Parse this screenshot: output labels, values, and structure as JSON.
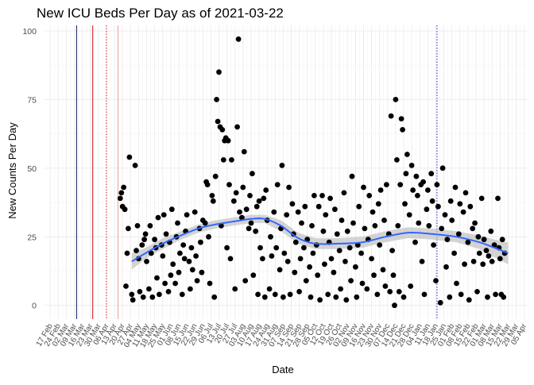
{
  "chart_data": {
    "type": "scatter",
    "title": "New ICU Beds Per Day as of 2021-03-22",
    "xlabel": "Date",
    "ylabel": "New Counts Per Day",
    "xlim": [
      "2020-02-12",
      "2021-04-08"
    ],
    "ylim": [
      -5,
      102
    ],
    "yticks": [
      0,
      25,
      50,
      75,
      100
    ],
    "xticks_start": "2020-02-17",
    "xticks_end": "2021-04-05",
    "xtick_step_days": 7,
    "grid": true,
    "background": "#ffffff",
    "point_color": "#000000",
    "smooth_color": "#3366ff",
    "band_color": "#bdbdbd",
    "reference_lines": [
      {
        "x": "2020-03-11",
        "color": "#1f2f6b",
        "style": "solid"
      },
      {
        "x": "2020-03-25",
        "color": "#d7262b",
        "style": "solid"
      },
      {
        "x": "2020-04-06",
        "color": "#d7262b",
        "style": "dotted"
      },
      {
        "x": "2020-04-16",
        "color": "#f4a5a5",
        "style": "solid"
      },
      {
        "x": "2021-01-19",
        "color": "#3333cc",
        "style": "dotted"
      }
    ],
    "smooth_curve": [
      {
        "x": "2020-04-28",
        "y": 16,
        "lo": 13,
        "hi": 19
      },
      {
        "x": "2020-05-10",
        "y": 19,
        "lo": 17,
        "hi": 21
      },
      {
        "x": "2020-05-25",
        "y": 22.5,
        "lo": 20.5,
        "hi": 24.5
      },
      {
        "x": "2020-06-10",
        "y": 25.5,
        "lo": 24,
        "hi": 27
      },
      {
        "x": "2020-06-25",
        "y": 28,
        "lo": 26.5,
        "hi": 29.5
      },
      {
        "x": "2020-07-10",
        "y": 29.5,
        "lo": 28,
        "hi": 31
      },
      {
        "x": "2020-07-25",
        "y": 30.5,
        "lo": 29,
        "hi": 32
      },
      {
        "x": "2020-08-10",
        "y": 31.5,
        "lo": 30,
        "hi": 33
      },
      {
        "x": "2020-08-22",
        "y": 31.5,
        "lo": 30,
        "hi": 33
      },
      {
        "x": "2020-09-05",
        "y": 29,
        "lo": 27,
        "hi": 31
      },
      {
        "x": "2020-09-20",
        "y": 24.5,
        "lo": 22.5,
        "hi": 26.5
      },
      {
        "x": "2020-10-05",
        "y": 22.5,
        "lo": 20.5,
        "hi": 24.5
      },
      {
        "x": "2020-10-25",
        "y": 22.5,
        "lo": 20.5,
        "hi": 24.5
      },
      {
        "x": "2020-11-15",
        "y": 23,
        "lo": 21,
        "hi": 25
      },
      {
        "x": "2020-12-05",
        "y": 25,
        "lo": 23,
        "hi": 27
      },
      {
        "x": "2020-12-25",
        "y": 26.5,
        "lo": 24.5,
        "hi": 28.5
      },
      {
        "x": "2021-01-15",
        "y": 26,
        "lo": 24,
        "hi": 28
      },
      {
        "x": "2021-02-05",
        "y": 25,
        "lo": 23,
        "hi": 27
      },
      {
        "x": "2021-02-25",
        "y": 23,
        "lo": 20.5,
        "hi": 25.5
      },
      {
        "x": "2021-03-10",
        "y": 21,
        "lo": 17.5,
        "hi": 24
      },
      {
        "x": "2021-03-22",
        "y": 19,
        "lo": 15,
        "hi": 23
      }
    ],
    "points": [
      [
        "2020-04-18",
        39
      ],
      [
        "2020-04-19",
        41
      ],
      [
        "2020-04-20",
        36
      ],
      [
        "2020-04-21",
        43
      ],
      [
        "2020-04-22",
        35
      ],
      [
        "2020-04-23",
        7
      ],
      [
        "2020-04-24",
        19
      ],
      [
        "2020-04-25",
        28
      ],
      [
        "2020-04-26",
        54
      ],
      [
        "2020-04-28",
        4
      ],
      [
        "2020-04-29",
        2
      ],
      [
        "2020-05-01",
        51
      ],
      [
        "2020-05-02",
        20
      ],
      [
        "2020-05-03",
        29
      ],
      [
        "2020-05-04",
        17
      ],
      [
        "2020-05-05",
        5
      ],
      [
        "2020-05-07",
        22
      ],
      [
        "2020-05-08",
        3
      ],
      [
        "2020-05-09",
        24
      ],
      [
        "2020-05-10",
        26
      ],
      [
        "2020-05-11",
        16
      ],
      [
        "2020-05-13",
        6
      ],
      [
        "2020-05-14",
        29
      ],
      [
        "2020-05-15",
        19
      ],
      [
        "2020-05-16",
        3
      ],
      [
        "2020-05-18",
        24
      ],
      [
        "2020-05-19",
        21
      ],
      [
        "2020-05-20",
        10
      ],
      [
        "2020-05-21",
        32
      ],
      [
        "2020-05-22",
        4
      ],
      [
        "2020-05-24",
        22
      ],
      [
        "2020-05-25",
        18
      ],
      [
        "2020-05-26",
        33
      ],
      [
        "2020-05-27",
        8
      ],
      [
        "2020-05-28",
        26
      ],
      [
        "2020-05-30",
        5
      ],
      [
        "2020-05-31",
        23
      ],
      [
        "2020-06-01",
        11
      ],
      [
        "2020-06-02",
        35
      ],
      [
        "2020-06-03",
        15
      ],
      [
        "2020-06-05",
        8
      ],
      [
        "2020-06-06",
        25
      ],
      [
        "2020-06-07",
        30
      ],
      [
        "2020-06-08",
        12
      ],
      [
        "2020-06-09",
        19
      ],
      [
        "2020-06-11",
        4
      ],
      [
        "2020-06-12",
        22
      ],
      [
        "2020-06-13",
        17
      ],
      [
        "2020-06-14",
        27
      ],
      [
        "2020-06-15",
        33
      ],
      [
        "2020-06-17",
        16
      ],
      [
        "2020-06-18",
        6
      ],
      [
        "2020-06-19",
        21
      ],
      [
        "2020-06-20",
        13
      ],
      [
        "2020-06-22",
        34
      ],
      [
        "2020-06-23",
        18
      ],
      [
        "2020-06-24",
        9
      ],
      [
        "2020-06-26",
        28
      ],
      [
        "2020-06-27",
        23
      ],
      [
        "2020-06-28",
        12
      ],
      [
        "2020-06-29",
        31
      ],
      [
        "2020-07-01",
        30
      ],
      [
        "2020-07-02",
        45
      ],
      [
        "2020-07-03",
        44
      ],
      [
        "2020-07-04",
        25
      ],
      [
        "2020-07-05",
        8
      ],
      [
        "2020-07-07",
        40
      ],
      [
        "2020-07-08",
        38
      ],
      [
        "2020-07-09",
        3
      ],
      [
        "2020-07-10",
        47
      ],
      [
        "2020-07-11",
        75
      ],
      [
        "2020-07-12",
        67
      ],
      [
        "2020-07-13",
        85
      ],
      [
        "2020-07-14",
        65
      ],
      [
        "2020-07-15",
        29
      ],
      [
        "2020-07-16",
        64
      ],
      [
        "2020-07-17",
        53
      ],
      [
        "2020-07-18",
        60
      ],
      [
        "2020-07-19",
        61
      ],
      [
        "2020-07-20",
        21
      ],
      [
        "2020-07-21",
        60
      ],
      [
        "2020-07-22",
        44
      ],
      [
        "2020-07-23",
        17
      ],
      [
        "2020-07-24",
        53
      ],
      [
        "2020-07-26",
        38
      ],
      [
        "2020-07-27",
        6
      ],
      [
        "2020-07-28",
        41
      ],
      [
        "2020-07-29",
        65
      ],
      [
        "2020-07-30",
        97
      ],
      [
        "2020-07-31",
        34
      ],
      [
        "2020-08-02",
        32
      ],
      [
        "2020-08-03",
        43
      ],
      [
        "2020-08-04",
        56
      ],
      [
        "2020-08-05",
        9
      ],
      [
        "2020-08-06",
        35
      ],
      [
        "2020-08-08",
        28
      ],
      [
        "2020-08-09",
        40
      ],
      [
        "2020-08-10",
        30
      ],
      [
        "2020-08-11",
        48
      ],
      [
        "2020-08-12",
        11
      ],
      [
        "2020-08-14",
        27
      ],
      [
        "2020-08-15",
        36
      ],
      [
        "2020-08-16",
        4
      ],
      [
        "2020-08-17",
        38
      ],
      [
        "2020-08-18",
        21
      ],
      [
        "2020-08-20",
        17
      ],
      [
        "2020-08-21",
        39
      ],
      [
        "2020-08-22",
        3
      ],
      [
        "2020-08-23",
        42
      ],
      [
        "2020-08-24",
        31
      ],
      [
        "2020-08-26",
        6
      ],
      [
        "2020-08-27",
        25
      ],
      [
        "2020-08-28",
        18
      ],
      [
        "2020-08-30",
        34
      ],
      [
        "2020-08-31",
        4
      ],
      [
        "2020-09-01",
        21
      ],
      [
        "2020-09-02",
        44
      ],
      [
        "2020-09-04",
        13
      ],
      [
        "2020-09-05",
        28
      ],
      [
        "2020-09-06",
        51
      ],
      [
        "2020-09-07",
        3
      ],
      [
        "2020-09-08",
        19
      ],
      [
        "2020-09-10",
        33
      ],
      [
        "2020-09-11",
        16
      ],
      [
        "2020-09-12",
        43
      ],
      [
        "2020-09-13",
        4
      ],
      [
        "2020-09-15",
        37
      ],
      [
        "2020-09-16",
        26
      ],
      [
        "2020-09-17",
        12
      ],
      [
        "2020-09-18",
        23
      ],
      [
        "2020-09-20",
        34
      ],
      [
        "2020-09-21",
        5
      ],
      [
        "2020-09-22",
        17
      ],
      [
        "2020-09-23",
        30
      ],
      [
        "2020-09-25",
        21
      ],
      [
        "2020-09-26",
        36
      ],
      [
        "2020-09-27",
        9
      ],
      [
        "2020-09-28",
        24
      ],
      [
        "2020-09-30",
        14
      ],
      [
        "2020-10-01",
        3
      ],
      [
        "2020-10-02",
        29
      ],
      [
        "2020-10-03",
        19
      ],
      [
        "2020-10-04",
        40
      ],
      [
        "2020-10-06",
        22
      ],
      [
        "2020-10-07",
        11
      ],
      [
        "2020-10-08",
        36
      ],
      [
        "2020-10-09",
        2
      ],
      [
        "2020-10-11",
        40
      ],
      [
        "2020-10-12",
        27
      ],
      [
        "2020-10-13",
        15
      ],
      [
        "2020-10-14",
        33
      ],
      [
        "2020-10-16",
        4
      ],
      [
        "2020-10-17",
        23
      ],
      [
        "2020-10-18",
        39
      ],
      [
        "2020-10-19",
        17
      ],
      [
        "2020-10-21",
        12
      ],
      [
        "2020-10-22",
        35
      ],
      [
        "2020-10-23",
        3
      ],
      [
        "2020-10-24",
        26
      ],
      [
        "2020-10-26",
        20
      ],
      [
        "2020-10-27",
        6
      ],
      [
        "2020-10-28",
        31
      ],
      [
        "2020-10-30",
        41
      ],
      [
        "2020-10-31",
        16
      ],
      [
        "2020-11-01",
        2
      ],
      [
        "2020-11-02",
        27
      ],
      [
        "2020-11-04",
        21
      ],
      [
        "2020-11-05",
        9
      ],
      [
        "2020-11-06",
        47
      ],
      [
        "2020-11-07",
        30
      ],
      [
        "2020-11-09",
        14
      ],
      [
        "2020-11-10",
        3
      ],
      [
        "2020-11-11",
        22
      ],
      [
        "2020-11-12",
        36
      ],
      [
        "2020-11-14",
        19
      ],
      [
        "2020-11-15",
        8
      ],
      [
        "2020-11-16",
        43
      ],
      [
        "2020-11-17",
        28
      ],
      [
        "2020-11-19",
        6
      ],
      [
        "2020-11-20",
        24
      ],
      [
        "2020-11-21",
        40
      ],
      [
        "2020-11-23",
        17
      ],
      [
        "2020-11-24",
        34
      ],
      [
        "2020-11-25",
        11
      ],
      [
        "2020-11-26",
        29
      ],
      [
        "2020-11-28",
        4
      ],
      [
        "2020-11-29",
        37
      ],
      [
        "2020-11-30",
        22
      ],
      [
        "2020-12-01",
        42
      ],
      [
        "2020-12-03",
        13
      ],
      [
        "2020-12-04",
        31
      ],
      [
        "2020-12-05",
        7
      ],
      [
        "2020-12-06",
        44
      ],
      [
        "2020-12-08",
        26
      ],
      [
        "2020-12-09",
        5
      ],
      [
        "2020-12-10",
        69
      ],
      [
        "2020-12-11",
        20
      ],
      [
        "2020-12-12",
        11
      ],
      [
        "2020-12-13",
        0
      ],
      [
        "2020-12-14",
        75
      ],
      [
        "2020-12-15",
        53
      ],
      [
        "2020-12-16",
        29
      ],
      [
        "2020-12-17",
        5
      ],
      [
        "2020-12-18",
        44
      ],
      [
        "2020-12-19",
        68
      ],
      [
        "2020-12-20",
        64
      ],
      [
        "2020-12-21",
        3
      ],
      [
        "2020-12-22",
        37
      ],
      [
        "2020-12-23",
        48
      ],
      [
        "2020-12-24",
        55
      ],
      [
        "2020-12-26",
        33
      ],
      [
        "2020-12-27",
        7
      ],
      [
        "2020-12-28",
        51
      ],
      [
        "2020-12-29",
        42
      ],
      [
        "2020-12-31",
        23
      ],
      [
        "2021-01-01",
        47
      ],
      [
        "2021-01-02",
        40
      ],
      [
        "2021-01-03",
        30
      ],
      [
        "2021-01-05",
        44
      ],
      [
        "2021-01-06",
        16
      ],
      [
        "2021-01-07",
        45
      ],
      [
        "2021-01-08",
        4
      ],
      [
        "2021-01-10",
        35
      ],
      [
        "2021-01-11",
        42
      ],
      [
        "2021-01-12",
        29
      ],
      [
        "2021-01-14",
        48
      ],
      [
        "2021-01-15",
        38
      ],
      [
        "2021-01-16",
        22
      ],
      [
        "2021-01-18",
        9
      ],
      [
        "2021-01-19",
        44
      ],
      [
        "2021-01-20",
        36
      ],
      [
        "2021-01-22",
        1
      ],
      [
        "2021-01-23",
        28
      ],
      [
        "2021-01-24",
        50
      ],
      [
        "2021-01-26",
        33
      ],
      [
        "2021-01-27",
        14
      ],
      [
        "2021-01-28",
        24
      ],
      [
        "2021-01-30",
        3
      ],
      [
        "2021-01-31",
        38
      ],
      [
        "2021-02-01",
        31
      ],
      [
        "2021-02-03",
        19
      ],
      [
        "2021-02-04",
        43
      ],
      [
        "2021-02-05",
        8
      ],
      [
        "2021-02-07",
        26
      ],
      [
        "2021-02-08",
        37
      ],
      [
        "2021-02-09",
        4
      ],
      [
        "2021-02-11",
        34
      ],
      [
        "2021-02-12",
        15
      ],
      [
        "2021-02-13",
        41
      ],
      [
        "2021-02-15",
        23
      ],
      [
        "2021-02-16",
        2
      ],
      [
        "2021-02-17",
        36
      ],
      [
        "2021-02-19",
        28
      ],
      [
        "2021-02-20",
        16
      ],
      [
        "2021-02-21",
        30
      ],
      [
        "2021-02-23",
        5
      ],
      [
        "2021-02-24",
        25
      ],
      [
        "2021-02-25",
        19
      ],
      [
        "2021-02-27",
        39
      ],
      [
        "2021-02-28",
        15
      ],
      [
        "2021-03-01",
        24
      ],
      [
        "2021-03-03",
        20
      ],
      [
        "2021-03-04",
        3
      ],
      [
        "2021-03-05",
        18
      ],
      [
        "2021-03-07",
        27
      ],
      [
        "2021-03-08",
        16
      ],
      [
        "2021-03-10",
        22
      ],
      [
        "2021-03-11",
        4
      ],
      [
        "2021-03-13",
        39
      ],
      [
        "2021-03-14",
        21
      ],
      [
        "2021-03-15",
        17
      ],
      [
        "2021-03-16",
        4
      ],
      [
        "2021-03-17",
        24
      ],
      [
        "2021-03-18",
        3
      ],
      [
        "2021-03-19",
        19
      ]
    ]
  }
}
